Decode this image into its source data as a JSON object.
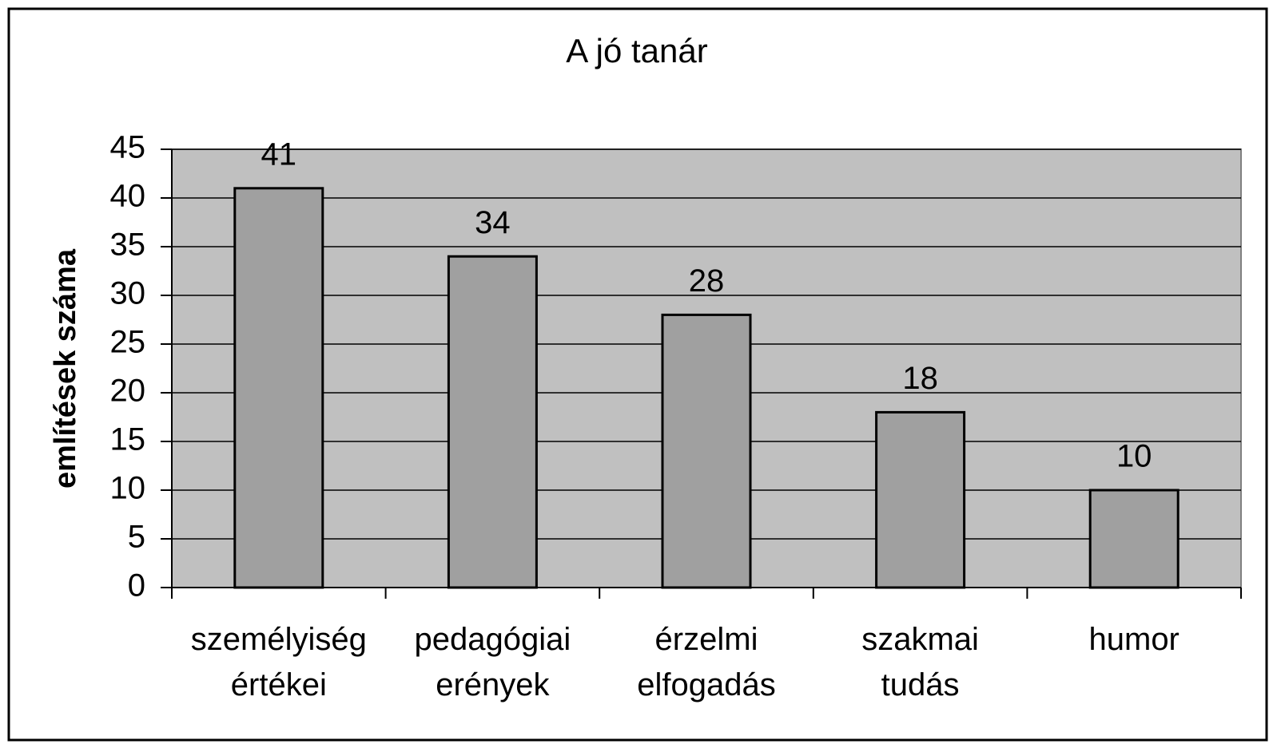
{
  "chart_data": {
    "type": "bar",
    "title": "A jó tanár",
    "y_label": "említések száma",
    "categories": [
      "személyiség értékei",
      "pedagógiai erények",
      "érzelmi elfogadás",
      "szakmai tudás",
      "humor"
    ],
    "values": [
      41,
      34,
      28,
      18,
      10
    ],
    "color": "#a0a0a0",
    "plot_background": "#c0c0c0",
    "ylim": [
      0,
      45
    ],
    "yticks": [
      0,
      5,
      10,
      15,
      20,
      25,
      30,
      35,
      40,
      45
    ],
    "grid": true
  }
}
